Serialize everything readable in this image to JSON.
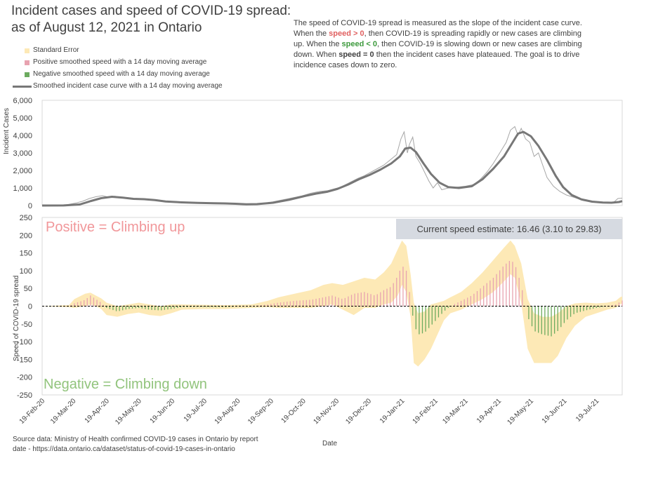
{
  "title": {
    "line1": "Incident cases and speed of COVID-19 spread:",
    "line2": "as of August 12, 2021 in Ontario"
  },
  "description": {
    "p1": "The speed of COVID-19 spread is measured  as the slope of the incident case curve.  When the ",
    "speed_pos": "speed > 0",
    "p2": ", then COVID-19 is spreading rapidly or new cases are climbing up. When the ",
    "speed_neg": "speed < 0",
    "p3": ", then COVID-19 is slowing down or new cases are  climbing down. When  ",
    "speed_zero": "speed = 0",
    "p4": " then the incident cases have plateaued.  The goal is to drive incidence cases down to zero."
  },
  "legend": {
    "se": "Standard Error",
    "pos": "Positive smoothed speed with a 14 day moving average",
    "neg": "Negative smoothed speed with a 14 day moving average",
    "line": "Smoothed incident case curve with a 14 day moving average"
  },
  "annotations": {
    "positive": "Positive = Climbing up",
    "negative": "Negative = Climbing down",
    "current_speed": "Current speed estimate: 16.46 (3.10 to 29.83)"
  },
  "source": {
    "line1": "Source data: Ministry of Health confirmed COVID-19 cases in Ontario by report",
    "line2": "date - https://data.ontario.ca/dataset/status-of-covid-19-cases-in-ontario"
  },
  "colors": {
    "se": "#fde9b6",
    "positive": "#e8a3b0",
    "negative": "#6cab5f",
    "smooth_line": "#777777",
    "raw_line": "#a6a6a6"
  },
  "chart_data": [
    {
      "type": "line",
      "title": "",
      "xlabel": "",
      "ylabel": "Incident Cases",
      "ylim": [
        0,
        6000
      ],
      "yticks": [
        "0",
        "1,000",
        "2,000",
        "3,000",
        "4,000",
        "5,000",
        "6,000"
      ],
      "x_day_range": [
        0,
        540
      ],
      "smoothed": [
        [
          0,
          0
        ],
        [
          20,
          5
        ],
        [
          35,
          60
        ],
        [
          45,
          250
        ],
        [
          55,
          420
        ],
        [
          65,
          500
        ],
        [
          75,
          450
        ],
        [
          85,
          380
        ],
        [
          95,
          360
        ],
        [
          105,
          310
        ],
        [
          115,
          230
        ],
        [
          130,
          180
        ],
        [
          145,
          150
        ],
        [
          160,
          130
        ],
        [
          170,
          120
        ],
        [
          180,
          100
        ],
        [
          190,
          70
        ],
        [
          200,
          80
        ],
        [
          215,
          160
        ],
        [
          230,
          330
        ],
        [
          245,
          550
        ],
        [
          255,
          680
        ],
        [
          265,
          780
        ],
        [
          275,
          950
        ],
        [
          285,
          1200
        ],
        [
          295,
          1500
        ],
        [
          305,
          1750
        ],
        [
          315,
          2050
        ],
        [
          325,
          2400
        ],
        [
          333,
          2800
        ],
        [
          338,
          3250
        ],
        [
          343,
          3300
        ],
        [
          348,
          3050
        ],
        [
          355,
          2400
        ],
        [
          362,
          1800
        ],
        [
          370,
          1300
        ],
        [
          378,
          1050
        ],
        [
          388,
          1000
        ],
        [
          400,
          1100
        ],
        [
          410,
          1500
        ],
        [
          420,
          2100
        ],
        [
          430,
          2800
        ],
        [
          437,
          3500
        ],
        [
          443,
          4100
        ],
        [
          448,
          4200
        ],
        [
          455,
          3950
        ],
        [
          462,
          3400
        ],
        [
          470,
          2600
        ],
        [
          478,
          1700
        ],
        [
          485,
          1050
        ],
        [
          493,
          600
        ],
        [
          502,
          350
        ],
        [
          512,
          220
        ],
        [
          522,
          170
        ],
        [
          530,
          160
        ],
        [
          537,
          200
        ],
        [
          540,
          250
        ]
      ],
      "raw": [
        [
          0,
          0
        ],
        [
          20,
          10
        ],
        [
          32,
          150
        ],
        [
          38,
          250
        ],
        [
          44,
          400
        ],
        [
          50,
          500
        ],
        [
          56,
          560
        ],
        [
          62,
          480
        ],
        [
          68,
          530
        ],
        [
          74,
          430
        ],
        [
          80,
          450
        ],
        [
          86,
          360
        ],
        [
          92,
          400
        ],
        [
          100,
          330
        ],
        [
          108,
          260
        ],
        [
          116,
          220
        ],
        [
          124,
          170
        ],
        [
          132,
          180
        ],
        [
          140,
          140
        ],
        [
          150,
          130
        ],
        [
          160,
          120
        ],
        [
          170,
          110
        ],
        [
          180,
          100
        ],
        [
          190,
          80
        ],
        [
          200,
          90
        ],
        [
          210,
          150
        ],
        [
          218,
          250
        ],
        [
          226,
          350
        ],
        [
          234,
          450
        ],
        [
          242,
          550
        ],
        [
          250,
          700
        ],
        [
          258,
          800
        ],
        [
          266,
          850
        ],
        [
          272,
          950
        ],
        [
          278,
          1050
        ],
        [
          286,
          1300
        ],
        [
          294,
          1550
        ],
        [
          300,
          1700
        ],
        [
          306,
          1900
        ],
        [
          312,
          2100
        ],
        [
          318,
          2300
        ],
        [
          324,
          2600
        ],
        [
          330,
          2900
        ],
        [
          334,
          3800
        ],
        [
          337,
          4200
        ],
        [
          340,
          3000
        ],
        [
          342,
          3500
        ],
        [
          345,
          3900
        ],
        [
          348,
          2800
        ],
        [
          352,
          2400
        ],
        [
          356,
          1900
        ],
        [
          360,
          1400
        ],
        [
          364,
          1000
        ],
        [
          368,
          1300
        ],
        [
          372,
          900
        ],
        [
          378,
          1000
        ],
        [
          386,
          1050
        ],
        [
          394,
          1100
        ],
        [
          402,
          1200
        ],
        [
          408,
          1500
        ],
        [
          414,
          1900
        ],
        [
          420,
          2400
        ],
        [
          426,
          3000
        ],
        [
          432,
          3600
        ],
        [
          436,
          4300
        ],
        [
          440,
          4500
        ],
        [
          443,
          4000
        ],
        [
          446,
          4400
        ],
        [
          450,
          3800
        ],
        [
          454,
          3600
        ],
        [
          458,
          2800
        ],
        [
          462,
          3000
        ],
        [
          466,
          2300
        ],
        [
          470,
          1600
        ],
        [
          476,
          1100
        ],
        [
          482,
          800
        ],
        [
          488,
          600
        ],
        [
          496,
          450
        ],
        [
          504,
          280
        ],
        [
          514,
          200
        ],
        [
          524,
          150
        ],
        [
          532,
          180
        ],
        [
          536,
          400
        ],
        [
          540,
          420
        ]
      ]
    },
    {
      "type": "bar",
      "title": "",
      "xlabel": "Date",
      "ylabel": "Speed of COVID-19 spread",
      "ylim": [
        -250,
        250
      ],
      "yticks": [
        "250",
        "200",
        "150",
        "100",
        "50",
        "0",
        "-50",
        "-100",
        "-150",
        "-200",
        "-250"
      ],
      "x_tick_labels": [
        "19-Feb-20",
        "19-Mar-20",
        "19-Apr-20",
        "19-May-20",
        "19-Jun-20",
        "19-Jul-20",
        "19-Aug-20",
        "19-Sep-20",
        "19-Oct-20",
        "19-Nov-20",
        "19-Dec-20",
        "19-Jan-21",
        "19-Feb-21",
        "19-Mar-21",
        "19-Apr-21",
        "19-May-21",
        "19-Jun-21",
        "19-Jul-21"
      ],
      "x_tick_days": [
        0,
        29,
        60,
        90,
        121,
        151,
        182,
        213,
        243,
        274,
        304,
        335,
        366,
        394,
        425,
        455,
        486,
        516
      ],
      "speed_series": [
        [
          0,
          0
        ],
        [
          25,
          0
        ],
        [
          30,
          8
        ],
        [
          40,
          18
        ],
        [
          45,
          30
        ],
        [
          50,
          20
        ],
        [
          55,
          10
        ],
        [
          60,
          -5
        ],
        [
          70,
          -15
        ],
        [
          80,
          -8
        ],
        [
          90,
          -5
        ],
        [
          100,
          -10
        ],
        [
          110,
          -12
        ],
        [
          120,
          -8
        ],
        [
          130,
          -3
        ],
        [
          150,
          -2
        ],
        [
          170,
          -3
        ],
        [
          195,
          0
        ],
        [
          210,
          5
        ],
        [
          220,
          10
        ],
        [
          235,
          15
        ],
        [
          250,
          18
        ],
        [
          262,
          25
        ],
        [
          270,
          30
        ],
        [
          280,
          20
        ],
        [
          290,
          35
        ],
        [
          300,
          40
        ],
        [
          310,
          30
        ],
        [
          318,
          45
        ],
        [
          325,
          55
        ],
        [
          331,
          85
        ],
        [
          335,
          115
        ],
        [
          339,
          100
        ],
        [
          343,
          20
        ],
        [
          346,
          -50
        ],
        [
          350,
          -80
        ],
        [
          356,
          -75
        ],
        [
          362,
          -55
        ],
        [
          368,
          -35
        ],
        [
          374,
          -15
        ],
        [
          380,
          0
        ],
        [
          390,
          15
        ],
        [
          400,
          30
        ],
        [
          410,
          55
        ],
        [
          420,
          80
        ],
        [
          430,
          115
        ],
        [
          436,
          130
        ],
        [
          440,
          120
        ],
        [
          446,
          60
        ],
        [
          452,
          -30
        ],
        [
          458,
          -70
        ],
        [
          466,
          -80
        ],
        [
          474,
          -85
        ],
        [
          480,
          -70
        ],
        [
          488,
          -40
        ],
        [
          496,
          -20
        ],
        [
          506,
          -12
        ],
        [
          516,
          -5
        ],
        [
          526,
          0
        ],
        [
          534,
          5
        ],
        [
          538,
          12
        ],
        [
          540,
          16
        ]
      ],
      "se_series": [
        [
          0,
          0,
          0
        ],
        [
          25,
          -3,
          3
        ],
        [
          30,
          -5,
          20
        ],
        [
          40,
          0,
          35
        ],
        [
          45,
          5,
          38
        ],
        [
          50,
          0,
          30
        ],
        [
          55,
          -8,
          22
        ],
        [
          60,
          -25,
          10
        ],
        [
          70,
          -30,
          0
        ],
        [
          80,
          -22,
          5
        ],
        [
          90,
          -18,
          10
        ],
        [
          100,
          -25,
          5
        ],
        [
          110,
          -28,
          0
        ],
        [
          120,
          -20,
          5
        ],
        [
          130,
          -10,
          5
        ],
        [
          150,
          -8,
          4
        ],
        [
          170,
          -8,
          3
        ],
        [
          195,
          -5,
          5
        ],
        [
          210,
          -3,
          15
        ],
        [
          220,
          -5,
          25
        ],
        [
          235,
          -5,
          35
        ],
        [
          250,
          -5,
          45
        ],
        [
          262,
          0,
          60
        ],
        [
          270,
          5,
          65
        ],
        [
          280,
          -10,
          60
        ],
        [
          290,
          -25,
          70
        ],
        [
          300,
          -5,
          80
        ],
        [
          310,
          -5,
          75
        ],
        [
          318,
          5,
          95
        ],
        [
          325,
          10,
          120
        ],
        [
          331,
          30,
          160
        ],
        [
          335,
          60,
          185
        ],
        [
          339,
          40,
          170
        ],
        [
          343,
          -30,
          90
        ],
        [
          346,
          -160,
          10
        ],
        [
          350,
          -170,
          -20
        ],
        [
          356,
          -150,
          -15
        ],
        [
          362,
          -120,
          5
        ],
        [
          368,
          -80,
          10
        ],
        [
          374,
          -40,
          15
        ],
        [
          380,
          -20,
          25
        ],
        [
          390,
          -10,
          40
        ],
        [
          400,
          5,
          65
        ],
        [
          410,
          20,
          95
        ],
        [
          420,
          40,
          130
        ],
        [
          430,
          70,
          165
        ],
        [
          436,
          90,
          185
        ],
        [
          440,
          80,
          170
        ],
        [
          446,
          10,
          120
        ],
        [
          452,
          -120,
          20
        ],
        [
          458,
          -160,
          -20
        ],
        [
          466,
          -160,
          -30
        ],
        [
          474,
          -160,
          -30
        ],
        [
          480,
          -140,
          -20
        ],
        [
          488,
          -90,
          0
        ],
        [
          496,
          -55,
          8
        ],
        [
          506,
          -30,
          10
        ],
        [
          516,
          -20,
          8
        ],
        [
          526,
          -10,
          10
        ],
        [
          534,
          -5,
          15
        ],
        [
          538,
          5,
          25
        ],
        [
          540,
          8,
          28
        ]
      ]
    }
  ]
}
